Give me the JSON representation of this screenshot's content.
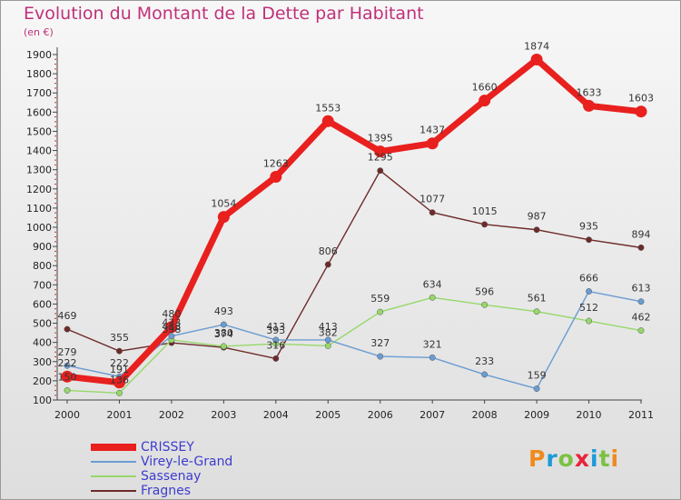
{
  "title": "Evolution du Montant de la Dette par Habitant",
  "subtitle": "(en €)",
  "brand": {
    "text": "Proxiti",
    "letter_colors": [
      "#f08a1e",
      "#1e9ad8",
      "#7bc142",
      "#e8233a",
      "#1e9ad8",
      "#7bc142",
      "#f08a1e"
    ]
  },
  "chart_data": {
    "type": "line",
    "title": "Evolution du Montant de la Dette par Habitant",
    "subtitle": "(en €)",
    "x": [
      "2000",
      "2001",
      "2002",
      "2003",
      "2004",
      "2005",
      "2006",
      "2007",
      "2008",
      "2009",
      "2010",
      "2011"
    ],
    "ylim": [
      100,
      1900
    ],
    "yticks": [
      100,
      200,
      300,
      400,
      500,
      600,
      700,
      800,
      900,
      1000,
      1100,
      1200,
      1300,
      1400,
      1500,
      1600,
      1700,
      1800,
      1900
    ],
    "grid": false,
    "legend_position": "bottom-left",
    "series": [
      {
        "name": "CRISSEY",
        "color": "#e8201e",
        "values": [
          222,
          191,
          480,
          1054,
          1263,
          1553,
          1395,
          1437,
          1660,
          1874,
          1633,
          1603
        ]
      },
      {
        "name": "Virey-le-Grand",
        "color": "#6a9cd3",
        "values": [
          279,
          222,
          433,
          493,
          413,
          413,
          327,
          321,
          233,
          159,
          666,
          613
        ]
      },
      {
        "name": "Sassenay",
        "color": "#96d86a",
        "values": [
          150,
          136,
          413,
          380,
          393,
          382,
          559,
          634,
          596,
          561,
          512,
          462
        ]
      },
      {
        "name": "Fragnes",
        "color": "#6e2a2a",
        "values": [
          469,
          355,
          398,
          374,
          316,
          806,
          1295,
          1077,
          1015,
          987,
          935,
          894
        ]
      }
    ]
  }
}
